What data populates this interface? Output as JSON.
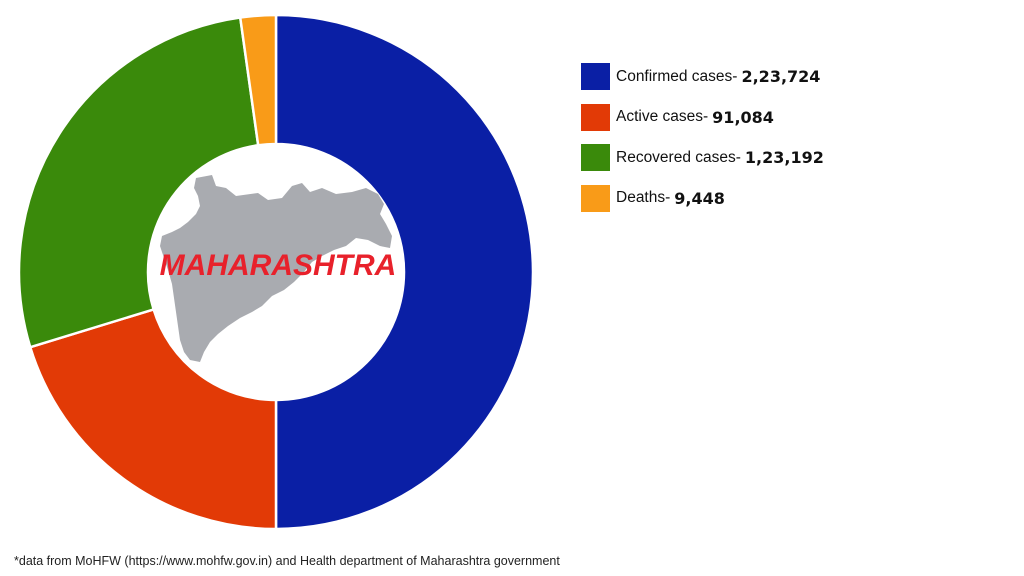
{
  "chart_data": {
    "type": "pie",
    "subtype": "donut",
    "title": "",
    "center_label": "MAHARASHTRA",
    "categories": [
      "Confirmed cases",
      "Active cases",
      "Recovered cases",
      "Deaths"
    ],
    "values": [
      223724,
      91084,
      123192,
      9448
    ],
    "display_values": [
      "2,23,724",
      "91,084",
      "1,23,192",
      "9,448"
    ],
    "colors": [
      "#0a1fa5",
      "#e23a06",
      "#3a8a0b",
      "#f99b18"
    ],
    "slice_angles_deg": [
      [
        0,
        180
      ],
      [
        180,
        253
      ],
      [
        253,
        352
      ],
      [
        352,
        360
      ]
    ],
    "legend_position": "right",
    "note": "Confirmed = Active + Recovered + Deaths; confirmed slice drawn as half ring"
  },
  "legend": {
    "items": [
      {
        "label": "Confirmed cases-",
        "value": "2,23,724",
        "color": "#0a1fa5"
      },
      {
        "label": "Active cases-",
        "value": "91,084",
        "color": "#e23a06"
      },
      {
        "label": "Recovered cases-",
        "value": "1,23,192",
        "color": "#3a8a0b"
      },
      {
        "label": "Deaths-",
        "value": "9,448",
        "color": "#f99b18"
      }
    ]
  },
  "center": {
    "label": "MAHARASHTRA",
    "label_color": "#e8212b",
    "map_color": "#a9abb0"
  },
  "footnote": "*data from MoHFW (https://www.mohfw.gov.in) and Health department of Maharashtra government"
}
